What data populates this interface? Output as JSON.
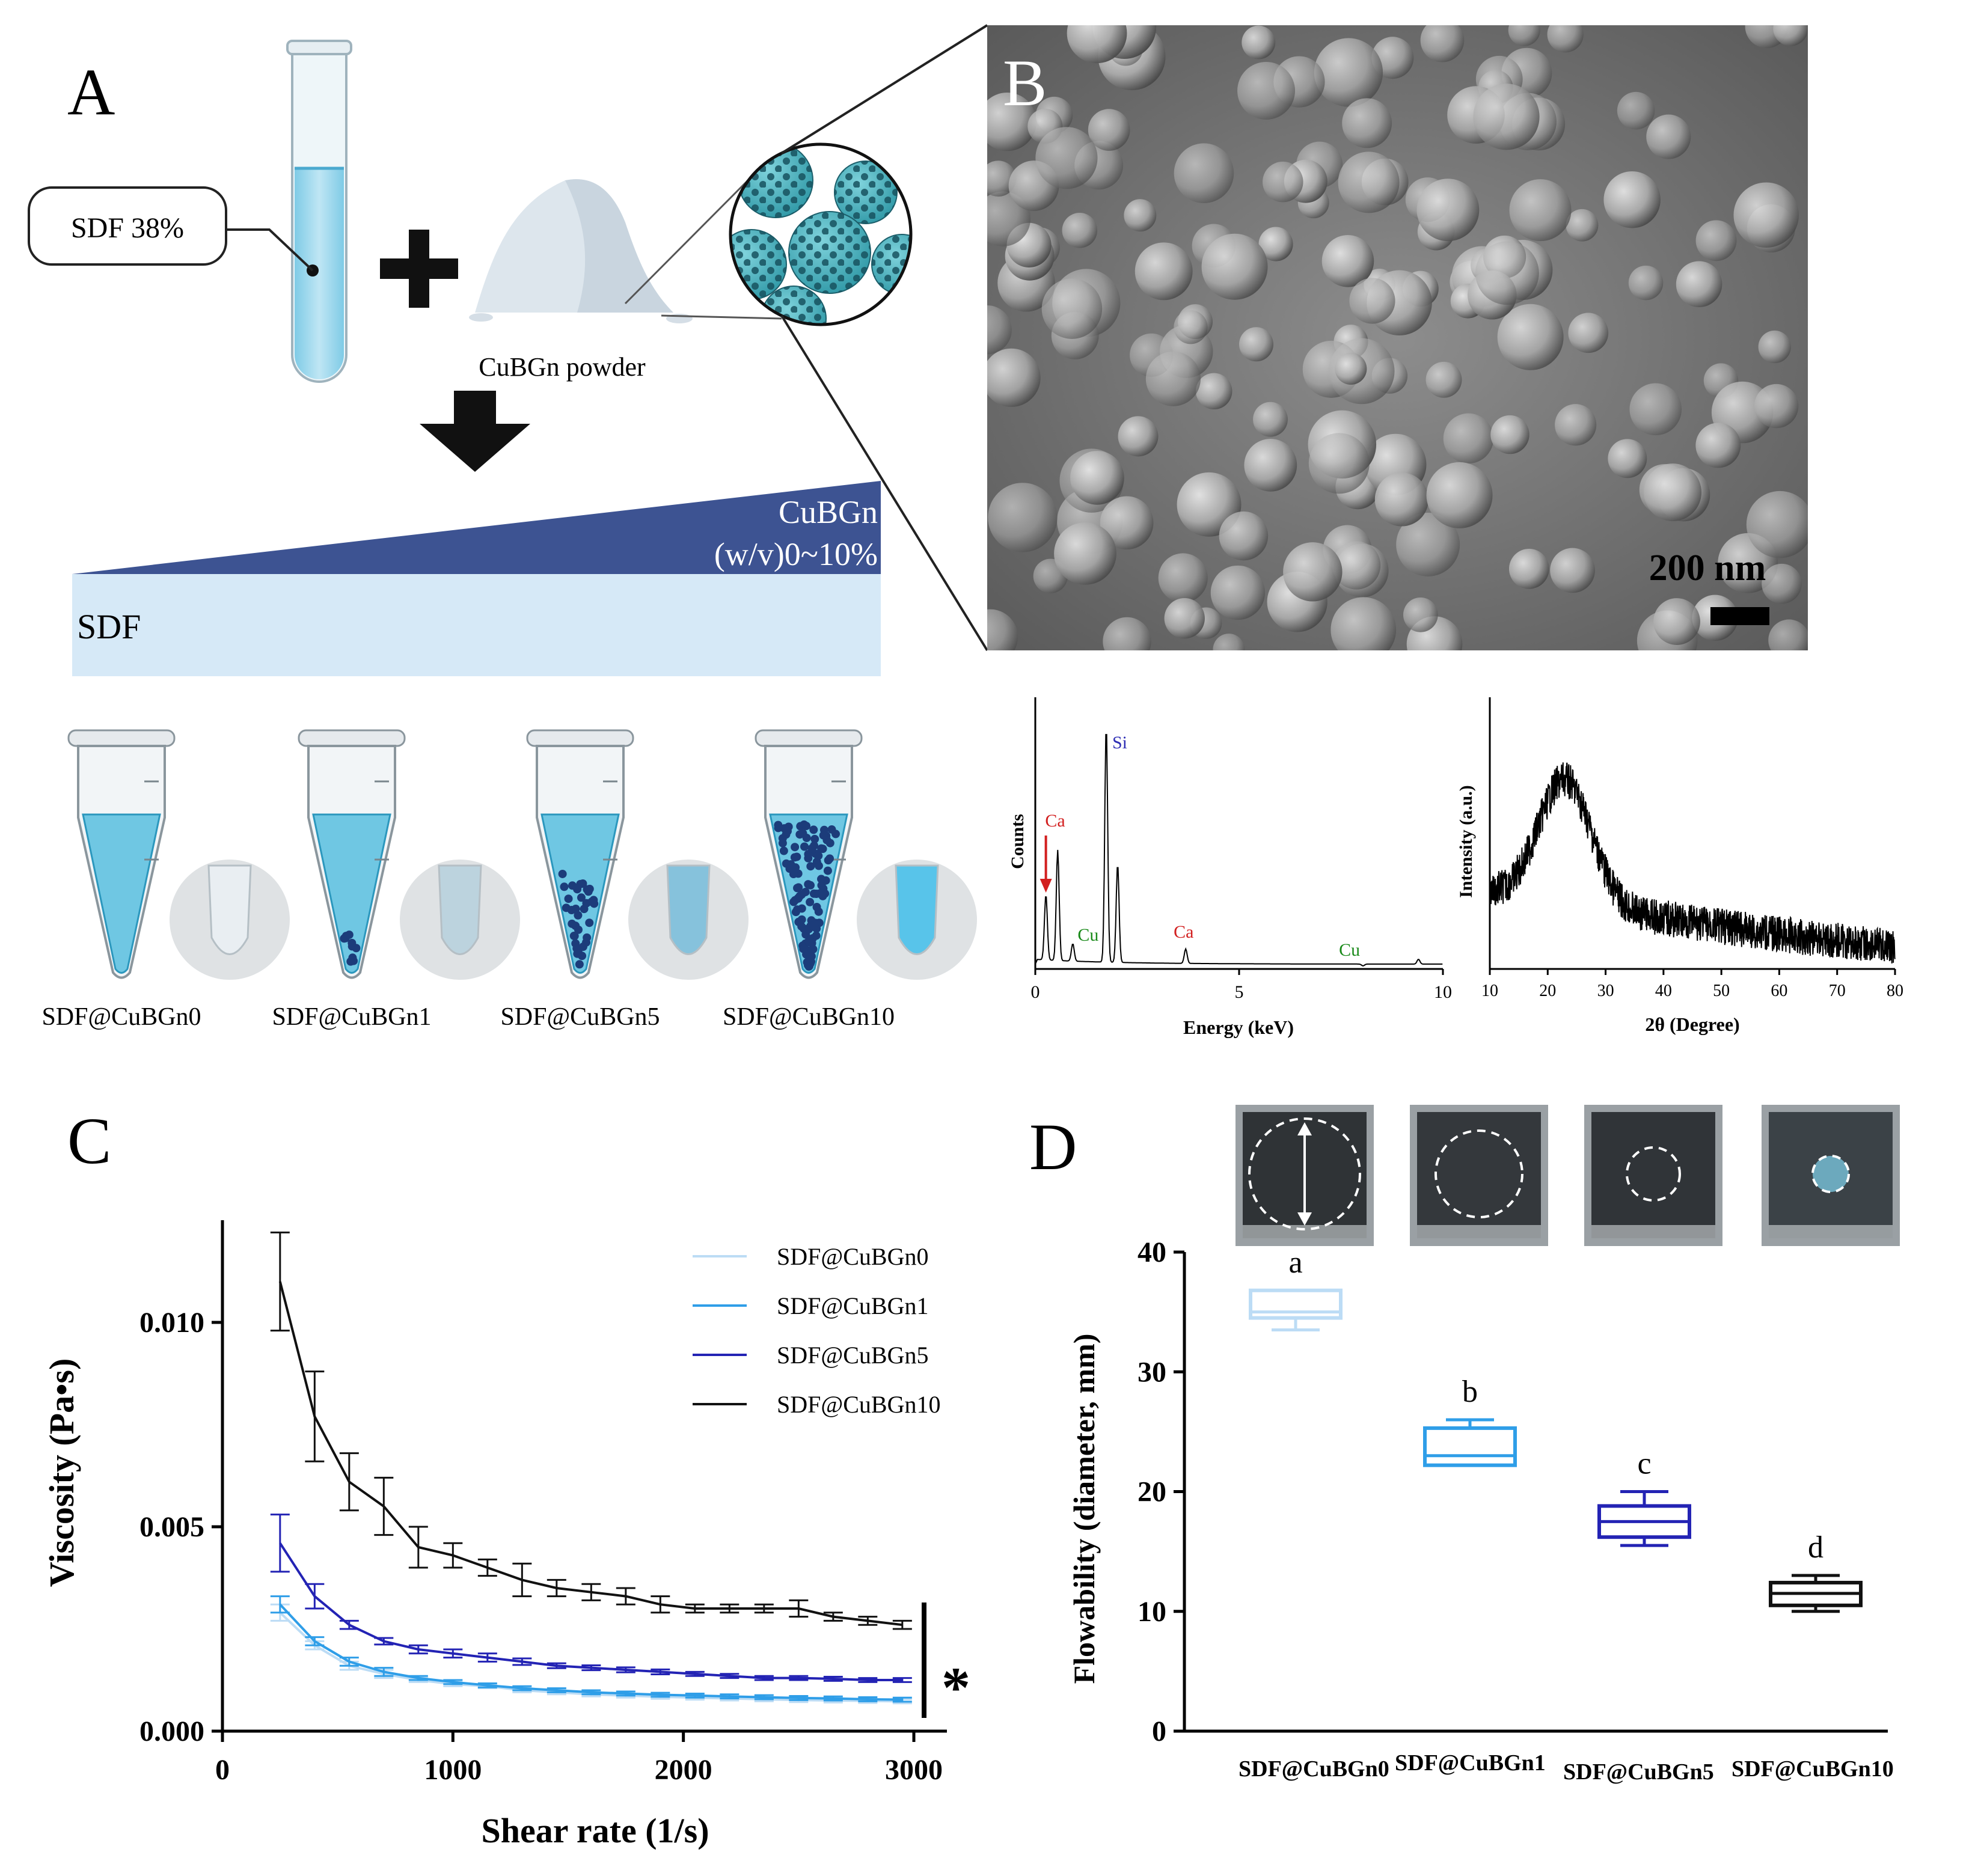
{
  "panel_a": {
    "label": "A",
    "callout": "SDF 38%",
    "powder_label": "CuBGn powder",
    "gradient_label_line1": "CuBGn",
    "gradient_label_line2": "(w/v)0~10%",
    "base_label": "SDF",
    "tubes": [
      {
        "label": "SDF@CuBGn0",
        "particles": 0,
        "photo_color": "#e9eef2"
      },
      {
        "label": "SDF@CuBGn1",
        "particles": 10,
        "photo_color": "#bcd3de"
      },
      {
        "label": "SDF@CuBGn5",
        "particles": 35,
        "photo_color": "#86c2dc"
      },
      {
        "label": "SDF@CuBGn10",
        "particles": 120,
        "photo_color": "#58c4ea"
      }
    ]
  },
  "panel_b": {
    "label": "B",
    "scale_bar": "200 nm",
    "eds": {
      "ylabel": "Counts",
      "xlabel": "Energy (keV)",
      "xticks": [
        "0",
        "5",
        "10"
      ],
      "peaks": [
        {
          "label": "Si",
          "color": "#2d2db4"
        },
        {
          "label": "Ca",
          "color": "#d21f1f"
        },
        {
          "label": "Cu",
          "color": "#1a8a1a"
        },
        {
          "label": "Ca",
          "color": "#d21f1f"
        },
        {
          "label": "Cu",
          "color": "#1a8a1a"
        }
      ]
    },
    "xrd": {
      "ylabel": "Intensity (a.u.)",
      "xlabel": "2θ (Degree)",
      "xticks": [
        "10",
        "20",
        "30",
        "40",
        "50",
        "60",
        "70",
        "80"
      ]
    }
  },
  "panel_c": {
    "label": "C",
    "chart_data": {
      "type": "line",
      "xlabel": "Shear rate (1/s)",
      "ylabel": "Viscosity (Pa•s)",
      "xlim": [
        0,
        3000
      ],
      "ylim": [
        0,
        0.0125
      ],
      "xticks": [
        "0",
        "1000",
        "2000",
        "3000"
      ],
      "yticks": [
        "0.000",
        "0.005",
        "0.010"
      ],
      "x": [
        250,
        400,
        550,
        700,
        850,
        1000,
        1150,
        1300,
        1450,
        1600,
        1750,
        1900,
        2050,
        2200,
        2350,
        2500,
        2650,
        2800,
        2950
      ],
      "series": [
        {
          "name": "SDF@CuBGn0",
          "color": "#bcdcf5",
          "values": [
            0.0029,
            0.0021,
            0.0016,
            0.0014,
            0.00125,
            0.00115,
            0.0011,
            0.001,
            0.00095,
            0.0009,
            0.00087,
            0.00084,
            0.00082,
            0.0008,
            0.00078,
            0.00076,
            0.00075,
            0.00074,
            0.00073
          ],
          "errors": [
            0.0002,
            0.0001,
            0.0001,
            0.0001,
            5e-05,
            5e-05,
            5e-05,
            5e-05,
            5e-05,
            5e-05,
            5e-05,
            5e-05,
            5e-05,
            5e-05,
            5e-05,
            5e-05,
            5e-05,
            5e-05,
            5e-05
          ]
        },
        {
          "name": "SDF@CuBGn1",
          "color": "#2f9ee8",
          "values": [
            0.0031,
            0.0022,
            0.0017,
            0.00145,
            0.0013,
            0.0012,
            0.00112,
            0.00105,
            0.001,
            0.00095,
            0.00092,
            0.00089,
            0.00087,
            0.00085,
            0.00083,
            0.00081,
            0.0008,
            0.00078,
            0.00077
          ],
          "errors": [
            0.0002,
            0.0001,
            0.0001,
            0.0001,
            5e-05,
            5e-05,
            5e-05,
            5e-05,
            5e-05,
            5e-05,
            5e-05,
            5e-05,
            5e-05,
            5e-05,
            5e-05,
            5e-05,
            5e-05,
            5e-05,
            5e-05
          ]
        },
        {
          "name": "SDF@CuBGn5",
          "color": "#2323b4",
          "values": [
            0.0046,
            0.0033,
            0.0026,
            0.0022,
            0.002,
            0.0019,
            0.0018,
            0.0017,
            0.0016,
            0.00155,
            0.0015,
            0.00145,
            0.0014,
            0.00135,
            0.0013,
            0.0013,
            0.00128,
            0.00125,
            0.00125
          ],
          "errors": [
            0.0007,
            0.0003,
            0.0001,
            8e-05,
            0.0001,
            0.0001,
            0.0001,
            8e-05,
            6e-05,
            6e-05,
            6e-05,
            6e-05,
            5e-05,
            5e-05,
            5e-05,
            5e-05,
            5e-05,
            5e-05,
            5e-05
          ]
        },
        {
          "name": "SDF@CuBGn10",
          "color": "#111111",
          "values": [
            0.011,
            0.0077,
            0.0061,
            0.0055,
            0.0045,
            0.0043,
            0.004,
            0.0037,
            0.0035,
            0.0034,
            0.0033,
            0.0031,
            0.003,
            0.003,
            0.003,
            0.003,
            0.0028,
            0.0027,
            0.0026
          ],
          "errors": [
            0.0012,
            0.0011,
            0.0007,
            0.0007,
            0.0005,
            0.0003,
            0.0002,
            0.0004,
            0.0002,
            0.0002,
            0.0002,
            0.0002,
            0.0001,
            0.0001,
            0.0001,
            0.0002,
            0.0001,
            0.0001,
            0.0001
          ]
        }
      ],
      "annotation": "*",
      "legend": "top-right",
      "grid": false
    }
  },
  "panel_d": {
    "label": "D",
    "chart_data": {
      "type": "box",
      "ylabel": "Flowability (diameter, mm)",
      "ylim": [
        0,
        40
      ],
      "yticks": [
        "0",
        "10",
        "20",
        "30",
        "40"
      ],
      "categories": [
        "SDF@CuBGn0",
        "SDF@CuBGn1",
        "SDF@CuBGn5",
        "SDF@CuBGn10"
      ],
      "boxes": [
        {
          "min": 33.5,
          "q1": 34.5,
          "median": 35,
          "q3": 36.8,
          "max": 36.8,
          "color": "#bcdcf5",
          "letter": "a"
        },
        {
          "min": 22.2,
          "q1": 22.2,
          "median": 23,
          "q3": 25.3,
          "max": 26,
          "color": "#2f9ee8",
          "letter": "b"
        },
        {
          "min": 15.5,
          "q1": 16.2,
          "median": 17.5,
          "q3": 18.8,
          "max": 20,
          "color": "#2323b4",
          "letter": "c"
        },
        {
          "min": 10,
          "q1": 10.5,
          "median": 11.5,
          "q3": 12.4,
          "max": 13,
          "color": "#111111",
          "letter": "d"
        }
      ],
      "grid": false
    },
    "photos": [
      {
        "circle": 0.92,
        "tint": "#2f3336",
        "arrow": true
      },
      {
        "circle": 0.72,
        "tint": "#34383c",
        "arrow": false
      },
      {
        "circle": 0.44,
        "tint": "#303438",
        "arrow": false
      },
      {
        "circle": 0.3,
        "tint": "#3b4247",
        "arrow": false
      }
    ]
  }
}
